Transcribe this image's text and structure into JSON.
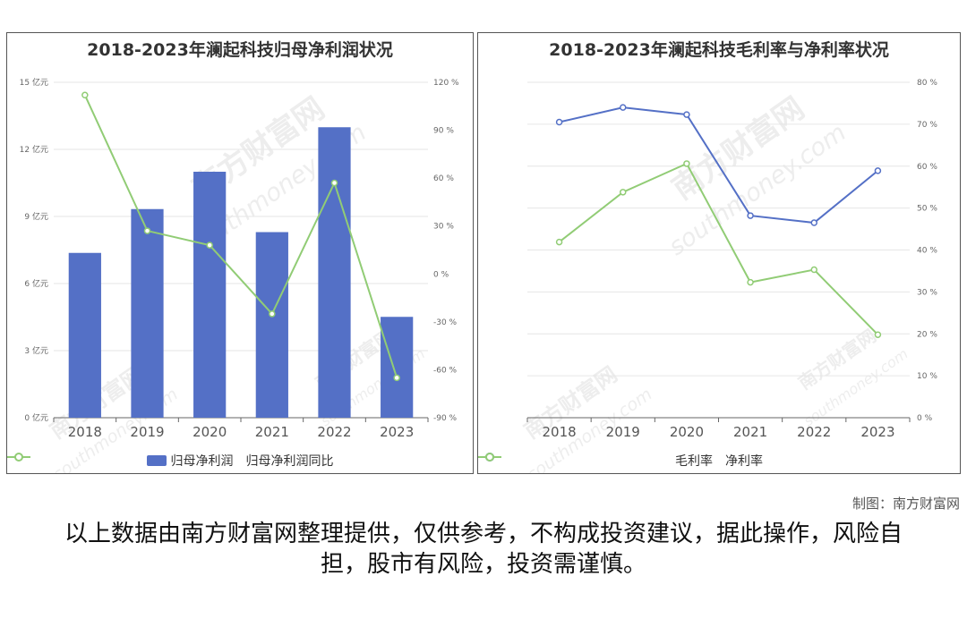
{
  "chart_data": [
    {
      "type": "bar",
      "title": "2018-2023年澜起科技归母净利润状况",
      "categories": [
        "2018",
        "2019",
        "2020",
        "2021",
        "2022",
        "2023"
      ],
      "series": [
        {
          "name": "归母净利润",
          "type": "bar",
          "axis": "left",
          "color": "#5470c6",
          "values": [
            7.37,
            9.33,
            11.0,
            8.3,
            12.99,
            4.51
          ]
        },
        {
          "name": "归母净利润同比",
          "type": "line",
          "axis": "right",
          "color": "#91cc75",
          "values": [
            112,
            27,
            18,
            -25,
            57,
            -65
          ]
        }
      ],
      "left_axis": {
        "ylim": [
          0,
          15
        ],
        "ticks": [
          0,
          3,
          6,
          9,
          12,
          15
        ],
        "tick_labels": [
          "0 亿元",
          "3 亿元",
          "6 亿元",
          "9 亿元",
          "12 亿元",
          "15 亿元"
        ]
      },
      "right_axis": {
        "ylim": [
          -90,
          120
        ],
        "ticks": [
          -90,
          -60,
          -30,
          0,
          30,
          60,
          90,
          120
        ],
        "tick_labels": [
          "-90 %",
          "-60 %",
          "-30 %",
          "0 %",
          "30 %",
          "60 %",
          "90 %",
          "120 %"
        ]
      },
      "legend_position": "bottom-center",
      "grid": true
    },
    {
      "type": "line",
      "title": "2018-2023年澜起科技毛利率与净利率状况",
      "categories": [
        "2018",
        "2019",
        "2020",
        "2021",
        "2022",
        "2023"
      ],
      "series": [
        {
          "name": "毛利率",
          "color": "#5470c6",
          "values": [
            70.5,
            74.0,
            72.3,
            48.2,
            46.5,
            58.9
          ]
        },
        {
          "name": "净利率",
          "color": "#91cc75",
          "values": [
            41.9,
            53.8,
            60.6,
            32.3,
            35.3,
            19.8
          ]
        }
      ],
      "right_axis": {
        "ylim": [
          0,
          80
        ],
        "ticks": [
          0,
          10,
          20,
          30,
          40,
          50,
          60,
          70,
          80
        ],
        "tick_labels": [
          "0 %",
          "10 %",
          "20 %",
          "30 %",
          "40 %",
          "50 %",
          "60 %",
          "70 %",
          "80 %"
        ]
      },
      "legend_position": "bottom-center",
      "grid": true
    }
  ],
  "watermark": {
    "text": "南方财富网",
    "url_text": "southmoney.com"
  },
  "credit": "制图：南方财富网",
  "disclaimer": "以上数据由南方财富网整理提供，仅供参考，不构成投资建议，据此操作，风险自担，股市有风险，投资需谨慎。"
}
